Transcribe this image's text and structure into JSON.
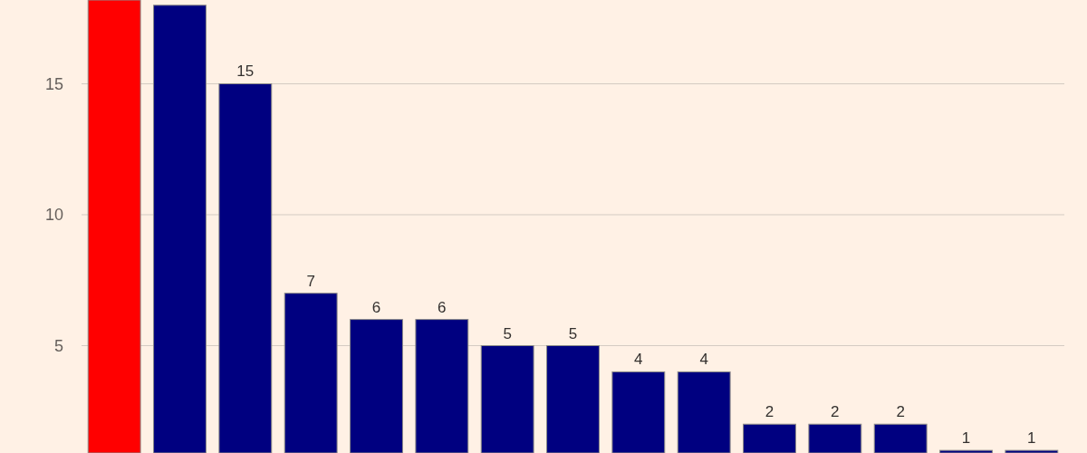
{
  "chart_data": {
    "type": "bar",
    "categories": [
      null,
      null,
      null,
      null,
      null,
      null,
      null,
      null,
      null,
      null,
      null,
      null,
      null,
      null,
      null
    ],
    "values": [
      18.2,
      18,
      15,
      7,
      6,
      6,
      5,
      5,
      4,
      4,
      2,
      2,
      2,
      1,
      1
    ],
    "colors": [
      "#ff0000",
      "#000080",
      "#000080",
      "#000080",
      "#000080",
      "#000080",
      "#000080",
      "#000080",
      "#000080",
      "#000080",
      "#000080",
      "#000080",
      "#000080",
      "#000080",
      "#000080"
    ],
    "value_labels": [
      null,
      null,
      "15",
      "7",
      "6",
      "6",
      "5",
      "5",
      "4",
      "4",
      "2",
      "2",
      "2",
      "1",
      "1"
    ],
    "ylim": [
      0.9,
      18.2
    ],
    "yticks": [
      5,
      10,
      15
    ],
    "grid": "y"
  }
}
